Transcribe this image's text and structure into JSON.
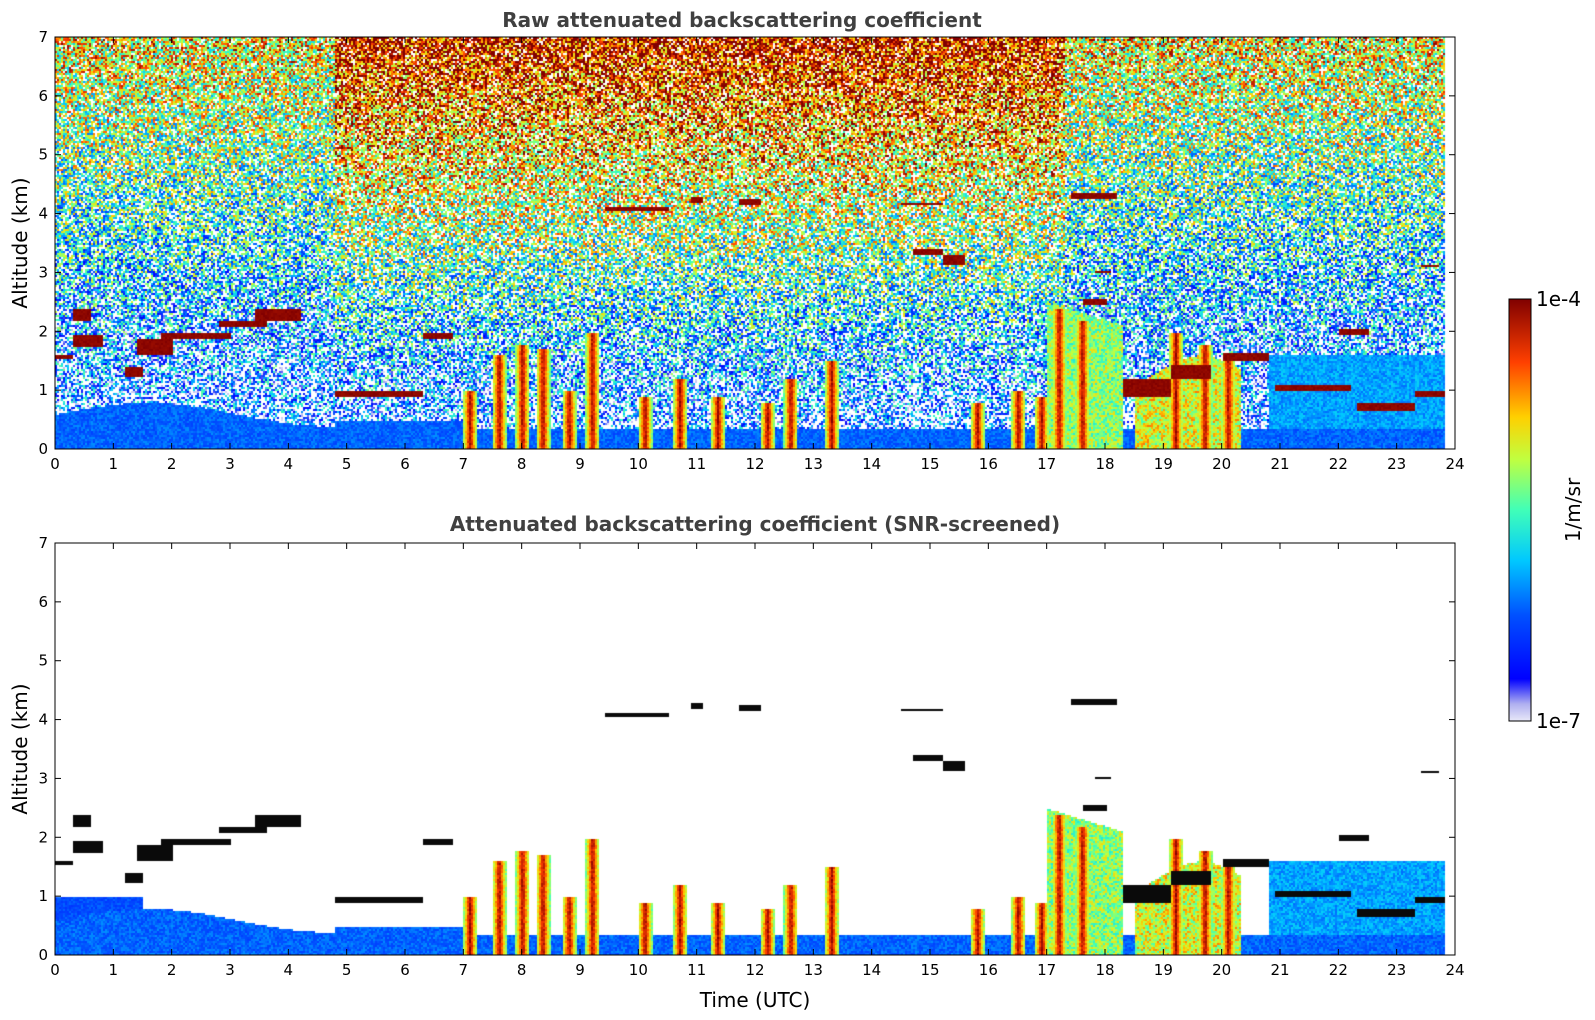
{
  "chart_data": [
    {
      "type": "heatmap",
      "title": "Raw attenuated backscattering coefficient",
      "xlabel": "",
      "ylabel": "Altitude (km)",
      "xlim": [
        0,
        24
      ],
      "ylim": [
        0,
        7
      ],
      "x_ticks": [
        "0",
        "1",
        "2",
        "3",
        "4",
        "5",
        "6",
        "7",
        "8",
        "9",
        "10",
        "11",
        "12",
        "13",
        "14",
        "15",
        "16",
        "17",
        "18",
        "19",
        "20",
        "21",
        "22",
        "23",
        "24"
      ],
      "y_ticks": [
        "0",
        "1",
        "2",
        "3",
        "4",
        "5",
        "6",
        "7"
      ],
      "screened": false
    },
    {
      "type": "heatmap",
      "title": "Attenuated backscattering coefficient (SNR-screened)",
      "xlabel": "Time (UTC)",
      "ylabel": "Altitude (km)",
      "xlim": [
        0,
        24
      ],
      "ylim": [
        0,
        7
      ],
      "x_ticks": [
        "0",
        "1",
        "2",
        "3",
        "4",
        "5",
        "6",
        "7",
        "8",
        "9",
        "10",
        "11",
        "12",
        "13",
        "14",
        "15",
        "16",
        "17",
        "18",
        "19",
        "20",
        "21",
        "22",
        "23",
        "24"
      ],
      "y_ticks": [
        "0",
        "1",
        "2",
        "3",
        "4",
        "5",
        "6",
        "7"
      ],
      "screened": true
    }
  ],
  "colorbar": {
    "label": "1/m/sr",
    "min_label": "1e-7",
    "max_label": "1e-4",
    "colormap": "jet"
  },
  "features": {
    "cloud_layers": [
      {
        "t0": 0.0,
        "t1": 0.3,
        "alt": [
          1.55,
          1.62
        ]
      },
      {
        "t0": 0.3,
        "t1": 0.8,
        "alt": [
          1.75,
          1.95
        ]
      },
      {
        "t0": 0.3,
        "t1": 0.6,
        "alt": [
          2.2,
          2.4
        ]
      },
      {
        "t0": 1.2,
        "t1": 1.5,
        "alt": [
          1.25,
          1.4
        ]
      },
      {
        "t0": 1.4,
        "t1": 2.0,
        "alt": [
          1.6,
          1.9
        ]
      },
      {
        "t0": 1.8,
        "t1": 3.0,
        "alt": [
          1.9,
          2.0
        ]
      },
      {
        "t0": 2.8,
        "t1": 3.6,
        "alt": [
          2.1,
          2.2
        ]
      },
      {
        "t0": 3.4,
        "t1": 4.2,
        "alt": [
          2.2,
          2.4
        ]
      },
      {
        "t0": 4.8,
        "t1": 6.3,
        "alt": [
          0.9,
          1.0
        ]
      },
      {
        "t0": 6.3,
        "t1": 6.8,
        "alt": [
          1.9,
          2.0
        ]
      },
      {
        "t0": 9.4,
        "t1": 10.5,
        "alt": [
          4.05,
          4.12
        ]
      },
      {
        "t0": 10.9,
        "t1": 11.1,
        "alt": [
          4.2,
          4.3
        ]
      },
      {
        "t0": 11.7,
        "t1": 12.1,
        "alt": [
          4.15,
          4.25
        ]
      },
      {
        "t0": 14.5,
        "t1": 15.2,
        "alt": [
          4.15,
          4.2
        ]
      },
      {
        "t0": 14.7,
        "t1": 15.2,
        "alt": [
          3.3,
          3.4
        ]
      },
      {
        "t0": 15.2,
        "t1": 15.6,
        "alt": [
          3.15,
          3.3
        ]
      },
      {
        "t0": 17.4,
        "t1": 18.2,
        "alt": [
          4.25,
          4.35
        ]
      },
      {
        "t0": 17.8,
        "t1": 18.1,
        "alt": [
          3.0,
          3.05
        ]
      },
      {
        "t0": 17.6,
        "t1": 18.0,
        "alt": [
          2.45,
          2.55
        ]
      },
      {
        "t0": 18.3,
        "t1": 19.1,
        "alt": [
          0.9,
          1.2
        ]
      },
      {
        "t0": 19.1,
        "t1": 19.8,
        "alt": [
          1.2,
          1.45
        ]
      },
      {
        "t0": 20.0,
        "t1": 20.8,
        "alt": [
          1.5,
          1.65
        ]
      },
      {
        "t0": 20.9,
        "t1": 22.2,
        "alt": [
          1.0,
          1.1
        ]
      },
      {
        "t0": 22.0,
        "t1": 22.5,
        "alt": [
          1.95,
          2.05
        ]
      },
      {
        "t0": 22.3,
        "t1": 23.3,
        "alt": [
          0.65,
          0.8
        ]
      },
      {
        "t0": 23.3,
        "t1": 23.8,
        "alt": [
          0.9,
          1.0
        ]
      },
      {
        "t0": 23.4,
        "t1": 23.7,
        "alt": [
          3.1,
          3.15
        ]
      }
    ],
    "plumes": [
      {
        "t": 7.1,
        "top": 1.0
      },
      {
        "t": 7.6,
        "top": 1.6
      },
      {
        "t": 8.0,
        "top": 1.8
      },
      {
        "t": 8.35,
        "top": 1.7
      },
      {
        "t": 8.8,
        "top": 1.0
      },
      {
        "t": 9.2,
        "top": 2.0
      },
      {
        "t": 10.1,
        "top": 0.9
      },
      {
        "t": 10.7,
        "top": 1.2
      },
      {
        "t": 11.35,
        "top": 0.9
      },
      {
        "t": 12.2,
        "top": 0.8
      },
      {
        "t": 12.6,
        "top": 1.2
      },
      {
        "t": 13.3,
        "top": 1.5
      },
      {
        "t": 15.8,
        "top": 0.8
      },
      {
        "t": 16.5,
        "top": 1.0
      },
      {
        "t": 16.9,
        "top": 0.9
      },
      {
        "t": 17.2,
        "top": 2.4
      },
      {
        "t": 17.6,
        "top": 2.2
      },
      {
        "t": 19.2,
        "top": 2.0
      },
      {
        "t": 19.7,
        "top": 1.8
      },
      {
        "t": 20.1,
        "top": 1.5
      }
    ]
  }
}
